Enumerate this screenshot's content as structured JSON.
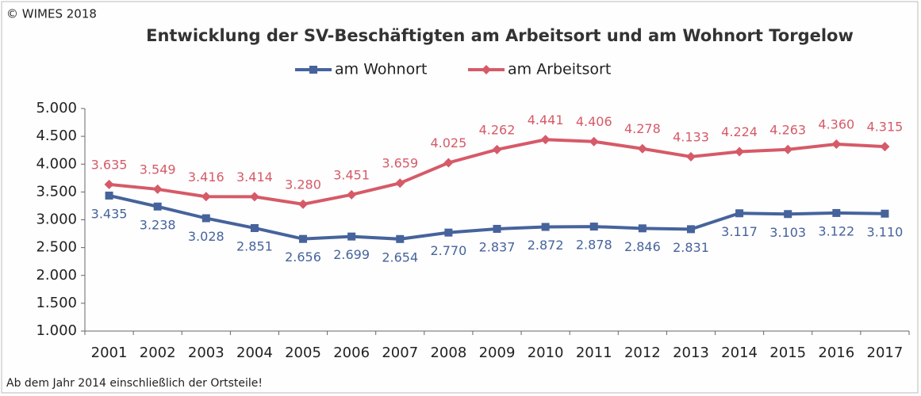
{
  "chart_data": {
    "type": "line",
    "copyright": "© WIMES 2018",
    "title": "Entwicklung der SV-Beschäftigten am Arbeitsort und am Wohnort Torgelow",
    "note": "Ab dem Jahr 2014 einschließlich der Ortsteile!",
    "legend": "top",
    "categories": [
      "2001",
      "2002",
      "2003",
      "2004",
      "2005",
      "2006",
      "2007",
      "2008",
      "2009",
      "2010",
      "2011",
      "2012",
      "2013",
      "2014",
      "2015",
      "2016",
      "2017"
    ],
    "series": [
      {
        "name": "am Wohnort",
        "color": "#46639c",
        "marker": "square",
        "values": [
          3435,
          3238,
          3028,
          2851,
          2656,
          2699,
          2654,
          2770,
          2837,
          2872,
          2878,
          2846,
          2831,
          3117,
          3103,
          3122,
          3110
        ],
        "value_labels": [
          "3.435",
          "3.238",
          "3.028",
          "2.851",
          "2.656",
          "2.699",
          "2.654",
          "2.770",
          "2.837",
          "2.872",
          "2.878",
          "2.846",
          "2.831",
          "3.117",
          "3.103",
          "3.122",
          "3.110"
        ]
      },
      {
        "name": "am Arbeitsort",
        "color": "#d65a68",
        "marker": "diamond",
        "values": [
          3635,
          3549,
          3416,
          3414,
          3280,
          3451,
          3659,
          4025,
          4262,
          4441,
          4406,
          4278,
          4133,
          4224,
          4263,
          4360,
          4315
        ],
        "value_labels": [
          "3.635",
          "3.549",
          "3.416",
          "3.414",
          "3.280",
          "3.451",
          "3.659",
          "4.025",
          "4.262",
          "4.441",
          "4.406",
          "4.278",
          "4.133",
          "4.224",
          "4.263",
          "4.360",
          "4.315"
        ]
      }
    ],
    "ylim": [
      1000,
      5000
    ],
    "yticks": [
      {
        "value": 1000,
        "label": "1.000"
      },
      {
        "value": 1500,
        "label": "1.500"
      },
      {
        "value": 2000,
        "label": "2.000"
      },
      {
        "value": 2500,
        "label": "2.500"
      },
      {
        "value": 3000,
        "label": "3.000"
      },
      {
        "value": 3500,
        "label": "3.500"
      },
      {
        "value": 4000,
        "label": "4.000"
      },
      {
        "value": 4500,
        "label": "4.500"
      },
      {
        "value": 5000,
        "label": "5.000"
      }
    ]
  }
}
